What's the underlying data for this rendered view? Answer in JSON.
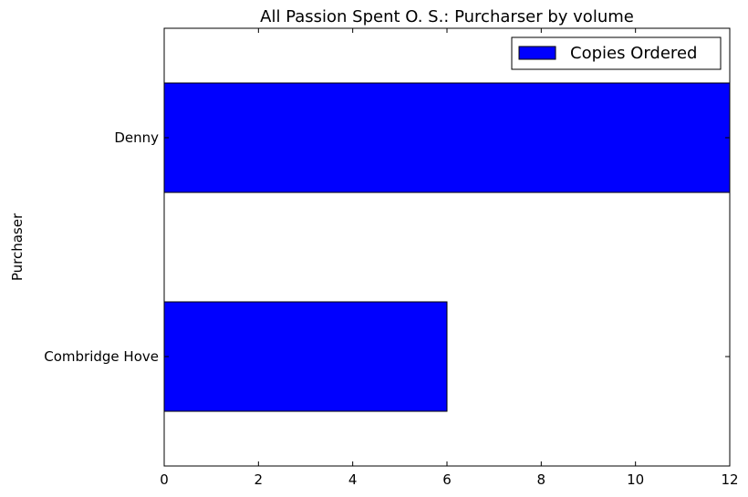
{
  "chart_data": {
    "type": "bar",
    "orientation": "horizontal",
    "title": "All Passion Spent O. S.: Purcharser by volume",
    "xlabel": "",
    "ylabel": "Purchaser",
    "categories": [
      "Combridge Hove",
      "Denny"
    ],
    "series": [
      {
        "name": "Copies Ordered",
        "values": [
          6,
          12
        ],
        "color": "#0000ff"
      }
    ],
    "xlim": [
      0,
      12
    ],
    "xticks": [
      0,
      2,
      4,
      6,
      8,
      10,
      12
    ],
    "grid": false,
    "legend_position": "top-right"
  }
}
